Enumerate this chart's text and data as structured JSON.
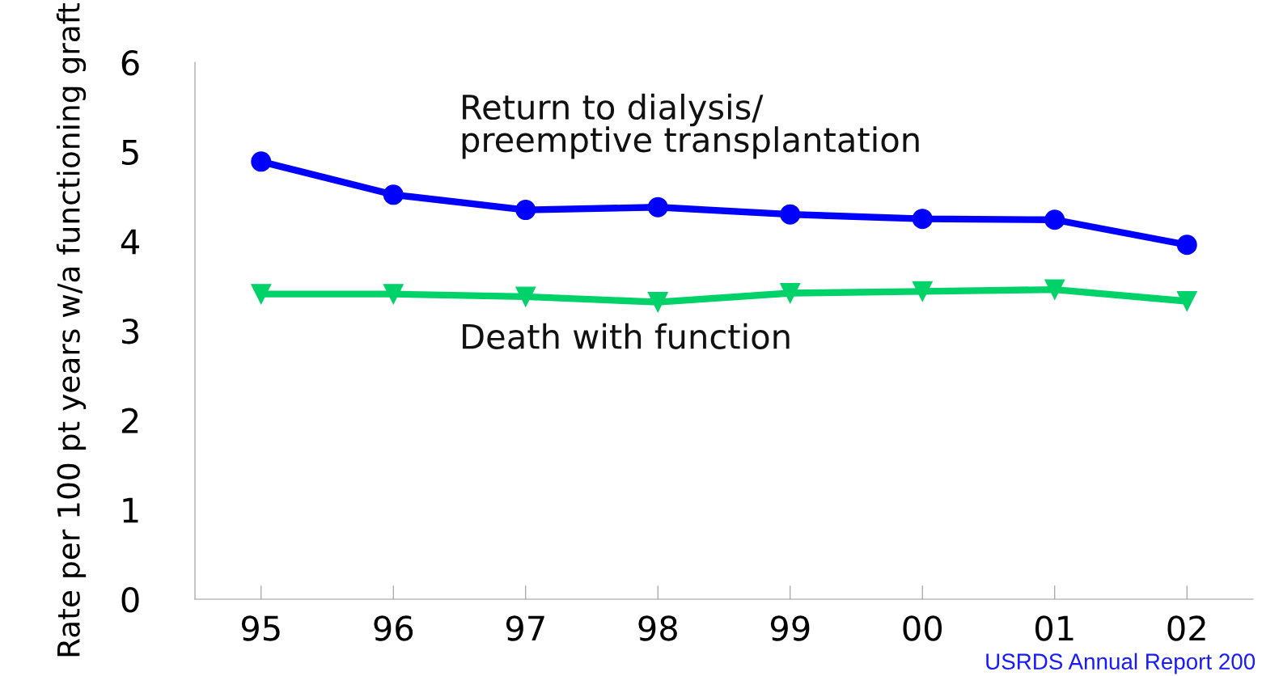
{
  "chart_data": {
    "type": "line",
    "ylabel": "Rate per 100 pt years w/a functioning graft",
    "categories": [
      "95",
      "96",
      "97",
      "98",
      "99",
      "00",
      "01",
      "02"
    ],
    "series": [
      {
        "name": "Return to dialysis/\npreemptive transplantation",
        "color": "#0000ff",
        "marker": "circle",
        "values": [
          4.89,
          4.52,
          4.35,
          4.38,
          4.3,
          4.25,
          4.24,
          3.96
        ]
      },
      {
        "name": "Death with function",
        "color": "#00d26a",
        "marker": "triangle",
        "values": [
          3.41,
          3.41,
          3.38,
          3.32,
          3.42,
          3.44,
          3.46,
          3.33
        ]
      }
    ],
    "ylim": [
      0,
      6
    ],
    "yticks": [
      0,
      1,
      2,
      3,
      4,
      5,
      6
    ],
    "grid": false,
    "legend": false,
    "annotations": [
      "USRDS Annual Report 200"
    ]
  }
}
